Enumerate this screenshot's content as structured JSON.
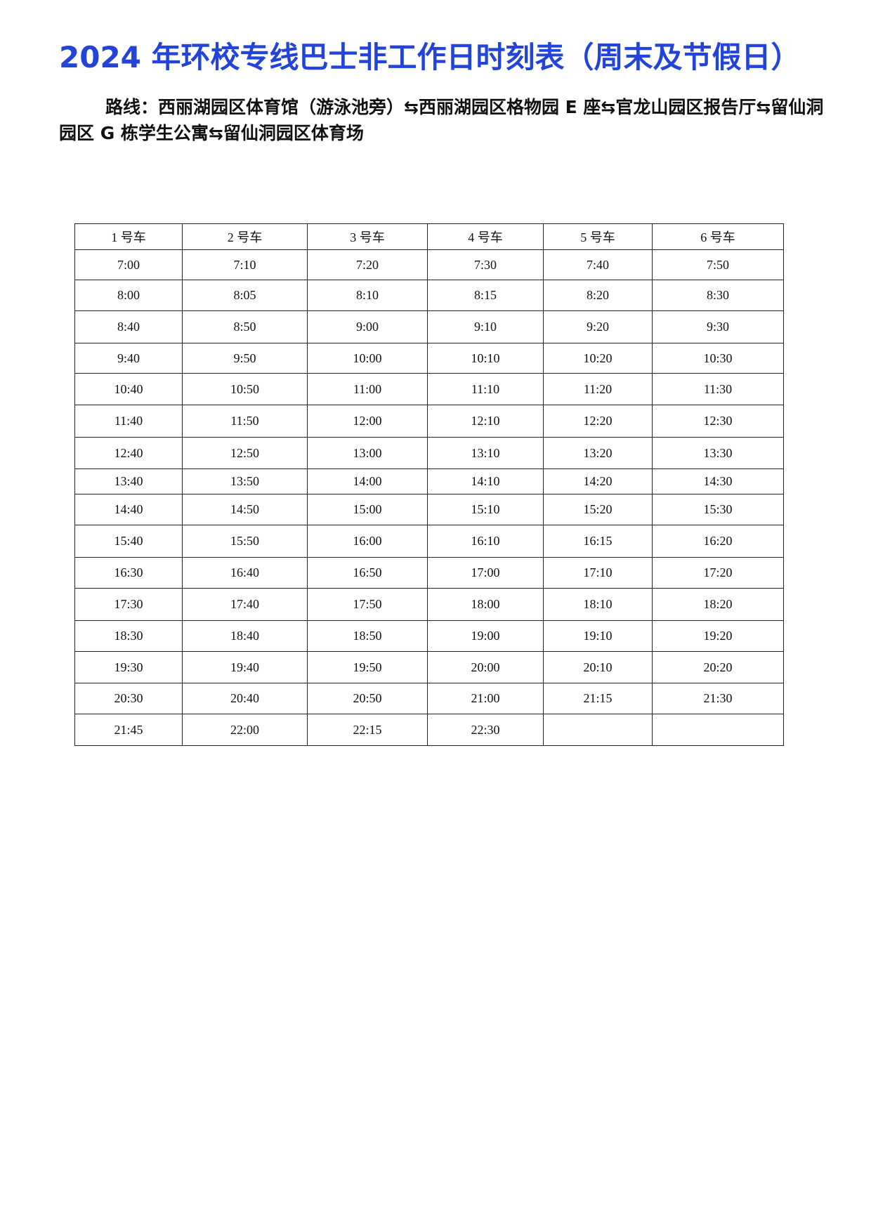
{
  "title": "2024 年环校专线巴士非工作日时刻表（周末及节假日）",
  "route": "路线：西丽湖园区体育馆（游泳池旁）⇆西丽湖园区格物园 E 座⇆官龙山园区报告厅⇆留仙洞园区 G 栋学生公寓⇆留仙洞园区体育场",
  "table": {
    "headers": [
      "1 号车",
      "2 号车",
      "3 号车",
      "4 号车",
      "5 号车",
      "6 号车"
    ],
    "rows": [
      [
        "7:00",
        "7:10",
        "7:20",
        "7:30",
        "7:40",
        "7:50"
      ],
      [
        "8:00",
        "8:05",
        "8:10",
        "8:15",
        "8:20",
        "8:30"
      ],
      [
        "8:40",
        "8:50",
        "9:00",
        "9:10",
        "9:20",
        "9:30"
      ],
      [
        "9:40",
        "9:50",
        "10:00",
        "10:10",
        "10:20",
        "10:30"
      ],
      [
        "10:40",
        "10:50",
        "11:00",
        "11:10",
        "11:20",
        "11:30"
      ],
      [
        "11:40",
        "11:50",
        "12:00",
        "12:10",
        "12:20",
        "12:30"
      ],
      [
        "12:40",
        "12:50",
        "13:00",
        "13:10",
        "13:20",
        "13:30"
      ],
      [
        "13:40",
        "13:50",
        "14:00",
        "14:10",
        "14:20",
        "14:30"
      ],
      [
        "14:40",
        "14:50",
        "15:00",
        "15:10",
        "15:20",
        "15:30"
      ],
      [
        "15:40",
        "15:50",
        "16:00",
        "16:10",
        "16:15",
        "16:20"
      ],
      [
        "16:30",
        "16:40",
        "16:50",
        "17:00",
        "17:10",
        "17:20"
      ],
      [
        "17:30",
        "17:40",
        "17:50",
        "18:00",
        "18:10",
        "18:20"
      ],
      [
        "18:30",
        "18:40",
        "18:50",
        "19:00",
        "19:10",
        "19:20"
      ],
      [
        "19:30",
        "19:40",
        "19:50",
        "20:00",
        "20:10",
        "20:20"
      ],
      [
        "20:30",
        "20:40",
        "20:50",
        "21:00",
        "21:15",
        "21:30"
      ],
      [
        "21:45",
        "22:00",
        "22:15",
        "22:30",
        "",
        ""
      ]
    ]
  }
}
